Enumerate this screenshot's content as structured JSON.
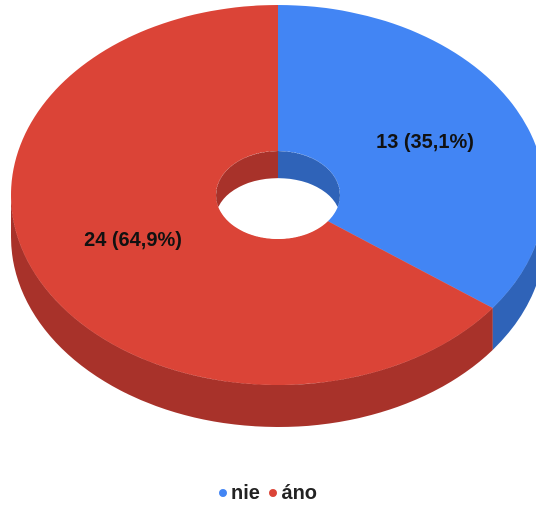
{
  "chart_data": {
    "type": "pie",
    "style": "3d-donut",
    "categories": [
      "nie",
      "áno"
    ],
    "values": [
      13,
      24
    ],
    "data_labels": [
      "13 (35,1%)",
      "24 (64,9%)"
    ],
    "colors": [
      "#4285f4",
      "#db4437"
    ],
    "side_colors": [
      "#2f63b8",
      "#a8322a"
    ],
    "legend_position": "bottom",
    "title": ""
  }
}
